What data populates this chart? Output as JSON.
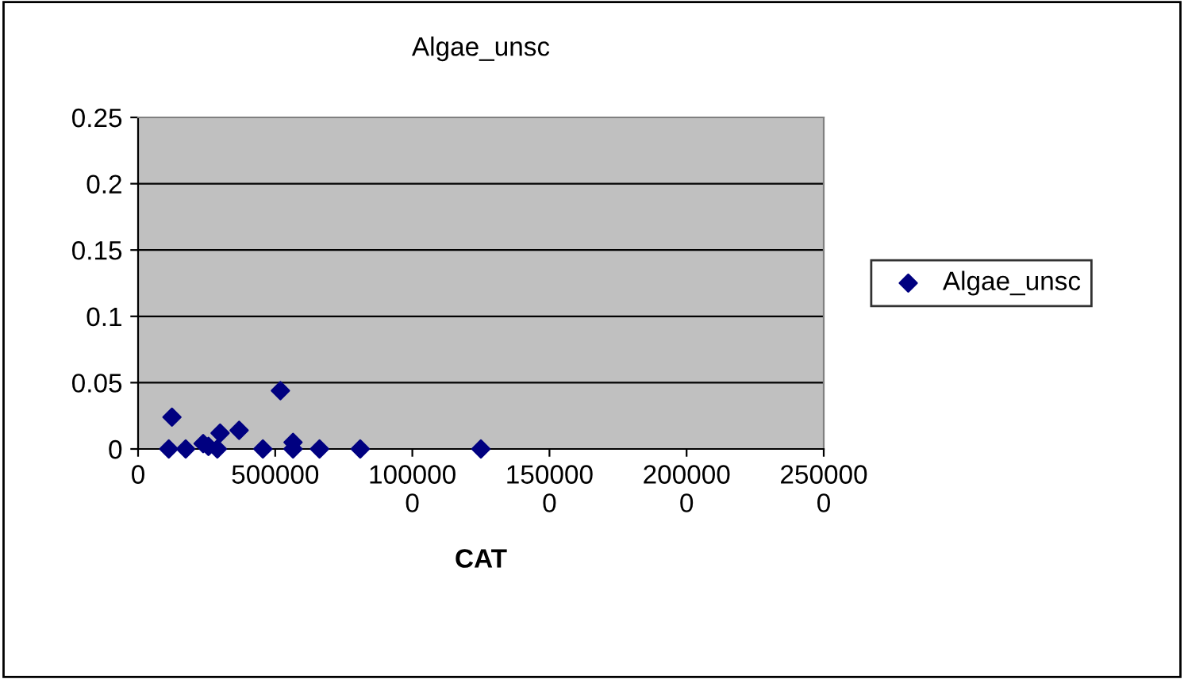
{
  "chart_data": {
    "type": "scatter",
    "title": "Algae_unsc",
    "xlabel": "CAT",
    "series": [
      {
        "name": "Algae_unsc",
        "color": "#000080",
        "x": [
          112000,
          123500,
          173600,
          237300,
          256600,
          289000,
          299000,
          368400,
          455000,
          519000,
          565000,
          565000,
          661600,
          810000,
          1250000
        ],
        "values": [
          0,
          0.024,
          0,
          0.004,
          0.002,
          0,
          0.012,
          0.014,
          0,
          0.044,
          0.005,
          0,
          0,
          0,
          0
        ]
      }
    ],
    "xlim": [
      0,
      2500000
    ],
    "xticks": [
      0,
      500000,
      {
        "value": 1000000,
        "label": "100000\n0"
      },
      {
        "value": 1500000,
        "label": "150000\n0"
      },
      {
        "value": 2000000,
        "label": "200000\n0"
      },
      {
        "value": 2500000,
        "label": "250000\n0"
      }
    ],
    "ylim": [
      0,
      0.25
    ],
    "yticks": [
      0,
      0.05,
      0.1,
      0.15,
      0.2,
      0.25
    ],
    "grid": "y",
    "legend": "right",
    "marker": "diamond"
  }
}
